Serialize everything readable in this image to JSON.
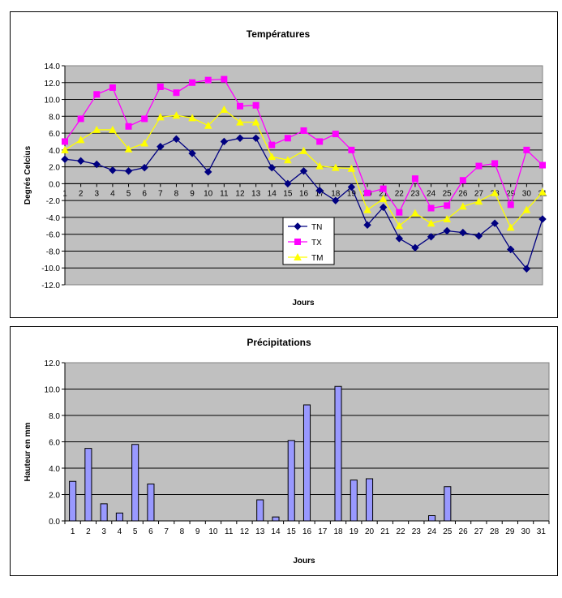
{
  "chart_data": [
    {
      "type": "line",
      "title": "Températures",
      "xlabel": "Jours",
      "ylabel": "Degrés Celcius",
      "ylim": [
        -12,
        14
      ],
      "ytick_step": 2,
      "yticks": [
        "14.0",
        "12.0",
        "10.0",
        "8.0",
        "6.0",
        "4.0",
        "2.0",
        "0.0",
        "-2.0",
        "-4.0",
        "-6.0",
        "-8.0",
        "-10.0",
        "-12.0"
      ],
      "categories": [
        "1",
        "2",
        "3",
        "4",
        "5",
        "6",
        "7",
        "8",
        "9",
        "10",
        "11",
        "12",
        "13",
        "14",
        "15",
        "16",
        "17",
        "18",
        "19",
        "20",
        "21",
        "22",
        "23",
        "24",
        "25",
        "26",
        "27",
        "28",
        "29",
        "30",
        "31"
      ],
      "grid": true,
      "legend": "center-bottom",
      "series": [
        {
          "name": "TN",
          "color": "#000080",
          "marker": "diamond",
          "values": [
            2.9,
            2.7,
            2.3,
            1.6,
            1.5,
            1.9,
            4.4,
            5.3,
            3.6,
            1.4,
            5.0,
            5.4,
            5.4,
            1.9,
            0.0,
            1.5,
            -0.8,
            -2.0,
            -0.4,
            -4.9,
            -2.8,
            -6.5,
            -7.6,
            -6.3,
            -5.6,
            -5.8,
            -6.2,
            -4.7,
            -7.8,
            -10.1,
            -4.2
          ]
        },
        {
          "name": "TX",
          "color": "#ff00ff",
          "marker": "square",
          "values": [
            5.0,
            7.7,
            10.6,
            11.4,
            6.8,
            7.7,
            11.5,
            10.8,
            12.0,
            12.3,
            12.4,
            9.2,
            9.3,
            4.6,
            5.4,
            6.3,
            5.0,
            5.9,
            4.0,
            -1.1,
            -0.6,
            -3.4,
            0.6,
            -2.9,
            -2.6,
            0.4,
            2.1,
            2.4,
            -2.5,
            4.0,
            2.2
          ]
        },
        {
          "name": "TM",
          "color": "#ffff00",
          "marker": "triangle",
          "values": [
            4.0,
            5.2,
            6.4,
            6.4,
            4.1,
            4.8,
            7.9,
            8.1,
            7.8,
            6.9,
            8.8,
            7.3,
            7.3,
            3.2,
            2.8,
            3.9,
            2.1,
            1.9,
            1.8,
            -3.1,
            -1.8,
            -5.0,
            -3.5,
            -4.7,
            -4.2,
            -2.7,
            -2.1,
            -1.1,
            -5.2,
            -3.1,
            -1.0
          ]
        }
      ]
    },
    {
      "type": "bar",
      "title": "Précipitations",
      "xlabel": "Jours",
      "ylabel": "Hauteur en mm",
      "ylim": [
        0,
        12
      ],
      "ytick_step": 2,
      "yticks": [
        "12.0",
        "10.0",
        "8.0",
        "6.0",
        "4.0",
        "2.0",
        "0.0"
      ],
      "categories": [
        "1",
        "2",
        "3",
        "4",
        "5",
        "6",
        "7",
        "8",
        "9",
        "10",
        "11",
        "12",
        "13",
        "14",
        "15",
        "16",
        "17",
        "18",
        "19",
        "20",
        "21",
        "22",
        "23",
        "24",
        "25",
        "26",
        "27",
        "28",
        "29",
        "30",
        "31"
      ],
      "grid": true,
      "bar_color": "#9999ff",
      "values": [
        3.0,
        5.5,
        1.3,
        0.6,
        5.8,
        2.8,
        0,
        0,
        0,
        0,
        0,
        0,
        1.6,
        0.3,
        6.1,
        8.8,
        0,
        10.2,
        3.1,
        3.2,
        0,
        0,
        0,
        0.4,
        2.6,
        0,
        0,
        0,
        0,
        0,
        0
      ]
    }
  ]
}
